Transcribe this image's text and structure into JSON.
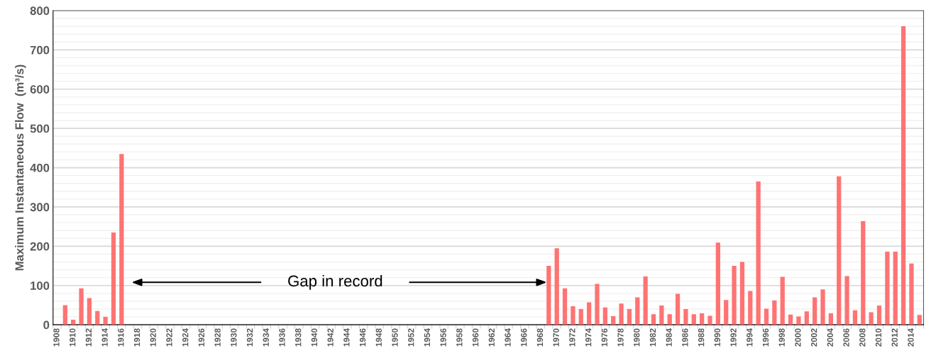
{
  "chart_data": {
    "type": "bar",
    "ylabel": "Maximum Instantaneous Flow  (m³/s)",
    "categories": [
      "1908",
      null,
      "1910",
      null,
      "1912",
      null,
      "1914",
      null,
      "1916",
      null,
      "1918",
      null,
      "1920",
      null,
      "1922",
      null,
      "1924",
      null,
      "1926",
      null,
      "1928",
      null,
      "1930",
      null,
      "1932",
      null,
      "1934",
      null,
      "1936",
      null,
      "1938",
      null,
      "1940",
      null,
      "1942",
      null,
      "1944",
      null,
      "1946",
      null,
      "1948",
      null,
      "1950",
      null,
      "1952",
      null,
      "1954",
      null,
      "1956",
      null,
      "1958",
      null,
      "1960",
      null,
      "1962",
      null,
      "1964",
      null,
      "1966",
      null,
      "1968",
      null,
      "1970",
      null,
      "1972",
      null,
      "1974",
      null,
      "1976",
      null,
      "1978",
      null,
      "1980",
      null,
      "1982",
      null,
      "1984",
      null,
      "1986",
      null,
      "1988",
      null,
      "1990",
      null,
      "1992",
      null,
      "1994",
      null,
      "1996",
      null,
      "1998",
      null,
      "2000",
      null,
      "2002",
      null,
      "2004",
      null,
      "2006",
      null,
      "2008",
      null,
      "2010",
      null,
      "2012",
      null,
      "2014",
      null
    ],
    "values": [
      null,
      50,
      13,
      93,
      68,
      35,
      20,
      235,
      435,
      null,
      null,
      null,
      null,
      null,
      null,
      null,
      null,
      null,
      null,
      null,
      null,
      null,
      null,
      null,
      null,
      null,
      null,
      null,
      null,
      null,
      null,
      null,
      null,
      null,
      null,
      null,
      null,
      null,
      null,
      null,
      null,
      null,
      null,
      null,
      null,
      null,
      null,
      null,
      null,
      null,
      null,
      null,
      null,
      null,
      null,
      null,
      null,
      null,
      null,
      null,
      null,
      150,
      195,
      93,
      47,
      40,
      57,
      104,
      44,
      22,
      54,
      40,
      70,
      123,
      27,
      49,
      27,
      79,
      40,
      27,
      29,
      23,
      209,
      63,
      150,
      160,
      86,
      365,
      41,
      62,
      122,
      26,
      21,
      34,
      70,
      90,
      29,
      378,
      124,
      37,
      264,
      32,
      49,
      186,
      186,
      760,
      156,
      25
    ],
    "color": "#ff6b6b",
    "ylim": [
      0,
      800
    ],
    "yticks": [
      0,
      100,
      200,
      300,
      400,
      500,
      600,
      700,
      800
    ],
    "grid": "y",
    "legend": false,
    "annotations": [
      "Gap in record"
    ]
  }
}
